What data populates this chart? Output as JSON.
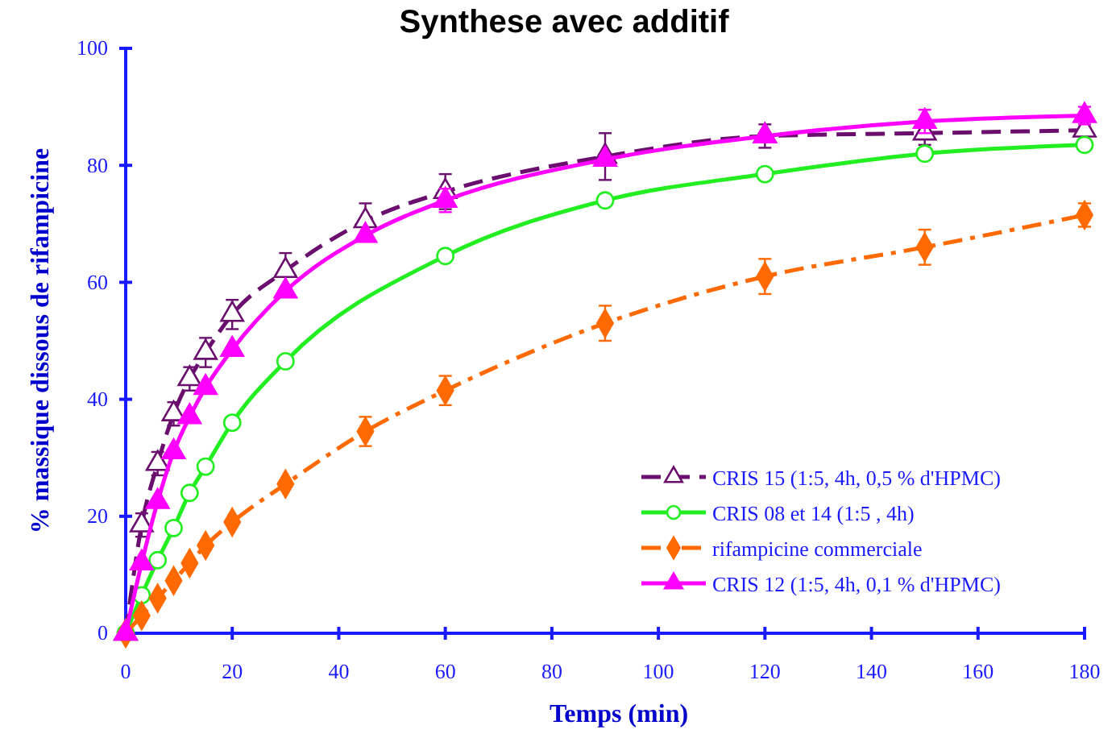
{
  "chart_data": {
    "type": "line",
    "title": "Synthese avec additif",
    "xlabel": "Temps (min)",
    "ylabel": "% massique dissous de rifampicine",
    "xlim": [
      0,
      180
    ],
    "ylim": [
      0,
      100
    ],
    "xticks": [
      0,
      20,
      40,
      60,
      80,
      100,
      120,
      140,
      160,
      180
    ],
    "yticks": [
      0,
      20,
      40,
      60,
      80,
      100
    ],
    "grid": false,
    "legend": "bottom right",
    "series": [
      {
        "name": "CRIS 15 (1:5, 4h, 0,5 % d'HPMC)",
        "color": "#6a0f6e",
        "marker": "triangle-open",
        "line_style": "dashed",
        "x": [
          0,
          3,
          6,
          9,
          12,
          15,
          20,
          30,
          45,
          60,
          90,
          120,
          150,
          180
        ],
        "values": [
          0,
          18.5,
          29,
          37.5,
          43.5,
          48,
          54.5,
          62,
          70.5,
          75.5,
          81.5,
          85,
          85.5,
          86
        ],
        "errors": [
          null,
          2,
          2,
          2,
          2,
          2.5,
          2.5,
          3,
          3,
          3,
          4,
          2,
          2,
          null
        ]
      },
      {
        "name": "CRIS 08 et 14 (1:5 , 4h)",
        "color": "#22ee22",
        "marker": "circle-open",
        "line_style": "solid",
        "x": [
          0,
          3,
          6,
          9,
          12,
          15,
          20,
          30,
          60,
          90,
          120,
          150,
          180
        ],
        "values": [
          0,
          6.5,
          12.5,
          18,
          24,
          28.5,
          36,
          46.5,
          64.5,
          74,
          78.5,
          82,
          83.5
        ]
      },
      {
        "name": "rifampicine commerciale",
        "color": "#ff6a00",
        "marker": "diamond",
        "line_style": "dashdot",
        "x": [
          0,
          3,
          6,
          9,
          12,
          15,
          20,
          30,
          45,
          60,
          90,
          120,
          150,
          180
        ],
        "values": [
          0,
          3,
          6,
          9,
          12,
          15,
          19,
          25.5,
          34.5,
          41.5,
          53,
          61,
          66,
          71.5
        ],
        "errors": [
          null,
          null,
          null,
          null,
          null,
          null,
          null,
          null,
          2.5,
          2.5,
          3,
          3,
          3,
          2
        ]
      },
      {
        "name": "CRIS 12 (1:5, 4h, 0,1 % d'HPMC)",
        "color": "#ff00ff",
        "marker": "triangle",
        "line_style": "solid",
        "x": [
          0,
          3,
          6,
          9,
          12,
          15,
          20,
          30,
          45,
          60,
          90,
          120,
          150,
          180
        ],
        "values": [
          0,
          12,
          22.5,
          31,
          37,
          42,
          48.5,
          58.5,
          68,
          74,
          81,
          85,
          87.5,
          88.5
        ],
        "errors": [
          null,
          null,
          null,
          null,
          null,
          null,
          null,
          null,
          null,
          2,
          null,
          null,
          2,
          1.5
        ]
      }
    ]
  }
}
